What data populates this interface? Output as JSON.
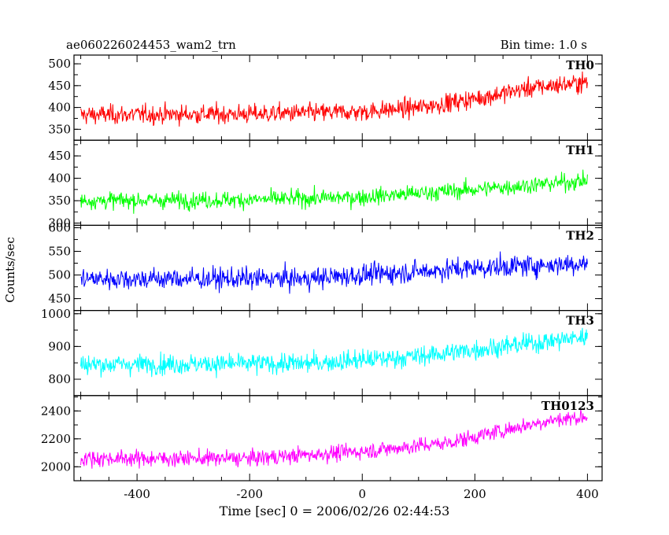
{
  "header": {
    "left_title": "ae060226024453_wam2_trn",
    "right_title": "Bin time: 1.0 s"
  },
  "chart_data": {
    "type": "line",
    "xlabel": "Time [sec] 0 = 2006/02/26 02:44:53",
    "ylabel": "Counts/sec",
    "xlim": [
      -512,
      426
    ],
    "xticks": [
      -400,
      -200,
      0,
      200,
      400
    ],
    "bin_time_s": 1.0,
    "grid": false,
    "panels": [
      {
        "name": "TH0",
        "color": "#ff0000",
        "ylim": [
          325,
          520
        ],
        "yticks": [
          350,
          400,
          450,
          500
        ],
        "trend": [
          [
            -500,
            383
          ],
          [
            -200,
            385
          ],
          [
            0,
            390
          ],
          [
            100,
            400
          ],
          [
            200,
            420
          ],
          [
            300,
            445
          ],
          [
            400,
            458
          ]
        ],
        "noise": 22
      },
      {
        "name": "TH1",
        "color": "#00ff00",
        "ylim": [
          295,
          485
        ],
        "yticks": [
          300,
          350,
          400,
          450
        ],
        "trend": [
          [
            -500,
            350
          ],
          [
            -200,
            352
          ],
          [
            0,
            358
          ],
          [
            200,
            375
          ],
          [
            400,
            395
          ]
        ],
        "noise": 19
      },
      {
        "name": "TH2",
        "color": "#0000ff",
        "ylim": [
          425,
          605
        ],
        "yticks": [
          450,
          500,
          550,
          600
        ],
        "trend": [
          [
            -500,
            492
          ],
          [
            -100,
            492
          ],
          [
            0,
            500
          ],
          [
            200,
            515
          ],
          [
            400,
            525
          ]
        ],
        "noise": 23
      },
      {
        "name": "TH3",
        "color": "#00ffff",
        "ylim": [
          750,
          1010
        ],
        "yticks": [
          800,
          900,
          1000
        ],
        "trend": [
          [
            -500,
            845
          ],
          [
            -100,
            848
          ],
          [
            100,
            870
          ],
          [
            250,
            900
          ],
          [
            400,
            930
          ]
        ],
        "noise": 31
      },
      {
        "name": "TH0123",
        "color": "#ff00ff",
        "ylim": [
          1900,
          2510
        ],
        "yticks": [
          2000,
          2200,
          2400
        ],
        "trend": [
          [
            -500,
            2060
          ],
          [
            -200,
            2060
          ],
          [
            0,
            2110
          ],
          [
            150,
            2170
          ],
          [
            250,
            2260
          ],
          [
            330,
            2330
          ],
          [
            400,
            2360
          ]
        ],
        "noise": 58
      }
    ]
  }
}
